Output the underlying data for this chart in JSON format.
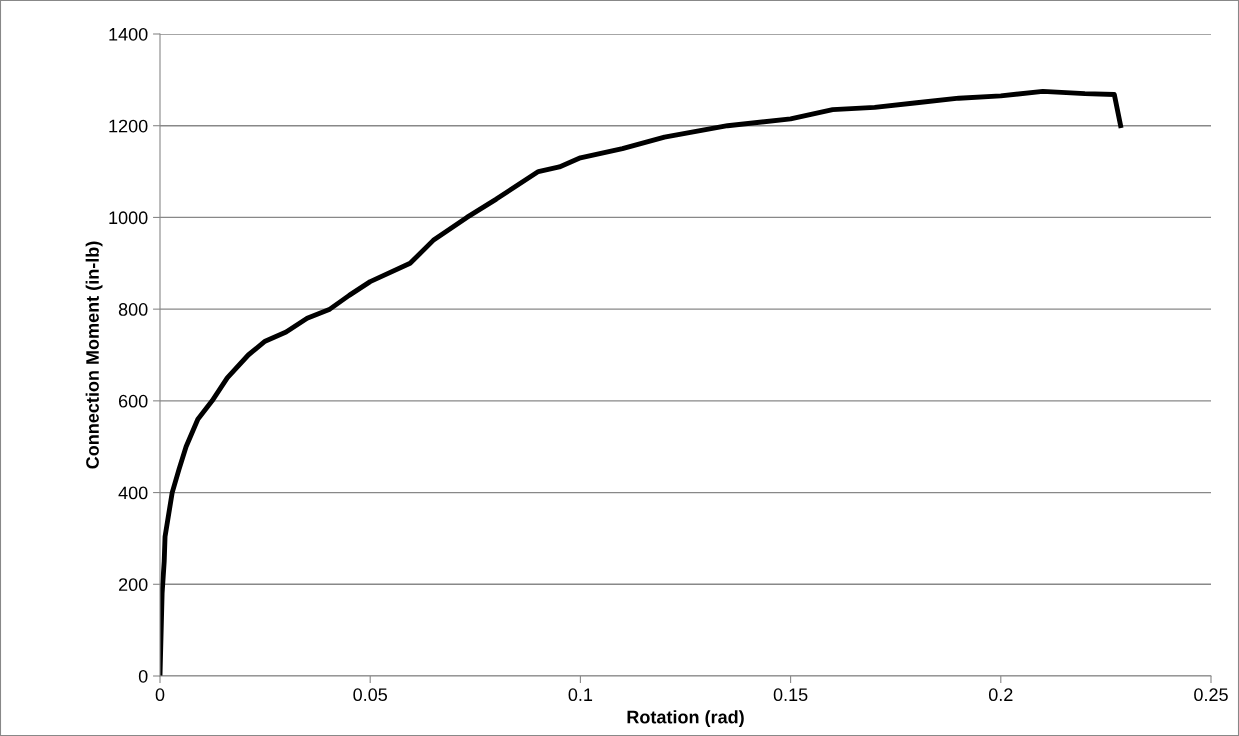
{
  "chart_data": {
    "type": "line",
    "xlabel": "Rotation (rad)",
    "ylabel": "Connection Moment (in-lb)",
    "x": [
      0,
      0.0005,
      0.001,
      0.0012,
      0.0029,
      0.0045,
      0.0062,
      0.009,
      0.0124,
      0.016,
      0.021,
      0.025,
      0.03,
      0.035,
      0.0404,
      0.045,
      0.05,
      0.0595,
      0.065,
      0.073,
      0.08,
      0.085,
      0.09,
      0.095,
      0.1,
      0.11,
      0.12,
      0.135,
      0.15,
      0.16,
      0.17,
      0.18,
      0.19,
      0.2,
      0.21,
      0.22,
      0.227,
      0.2285
    ],
    "series": [
      {
        "color": "#000000",
        "values": [
          0,
          180,
          250,
          304,
          400,
          450,
          500,
          560,
          600,
          650,
          700,
          730,
          750,
          780,
          800,
          830,
          860,
          900,
          950,
          1000,
          1040,
          1070,
          1100,
          1110,
          1130,
          1150,
          1175,
          1200,
          1215,
          1235,
          1240,
          1250,
          1260,
          1265,
          1275,
          1270,
          1268,
          1200
        ]
      }
    ],
    "xlim": [
      0,
      0.25
    ],
    "xticks": [
      0,
      0.05,
      0.1,
      0.15,
      0.2,
      0.25
    ],
    "ylim": [
      0,
      1400
    ],
    "yticks": [
      0,
      200,
      400,
      600,
      800,
      1000,
      1200,
      1400
    ],
    "grid": "y",
    "legend": false,
    "marker": "none",
    "line_style": "solid"
  }
}
